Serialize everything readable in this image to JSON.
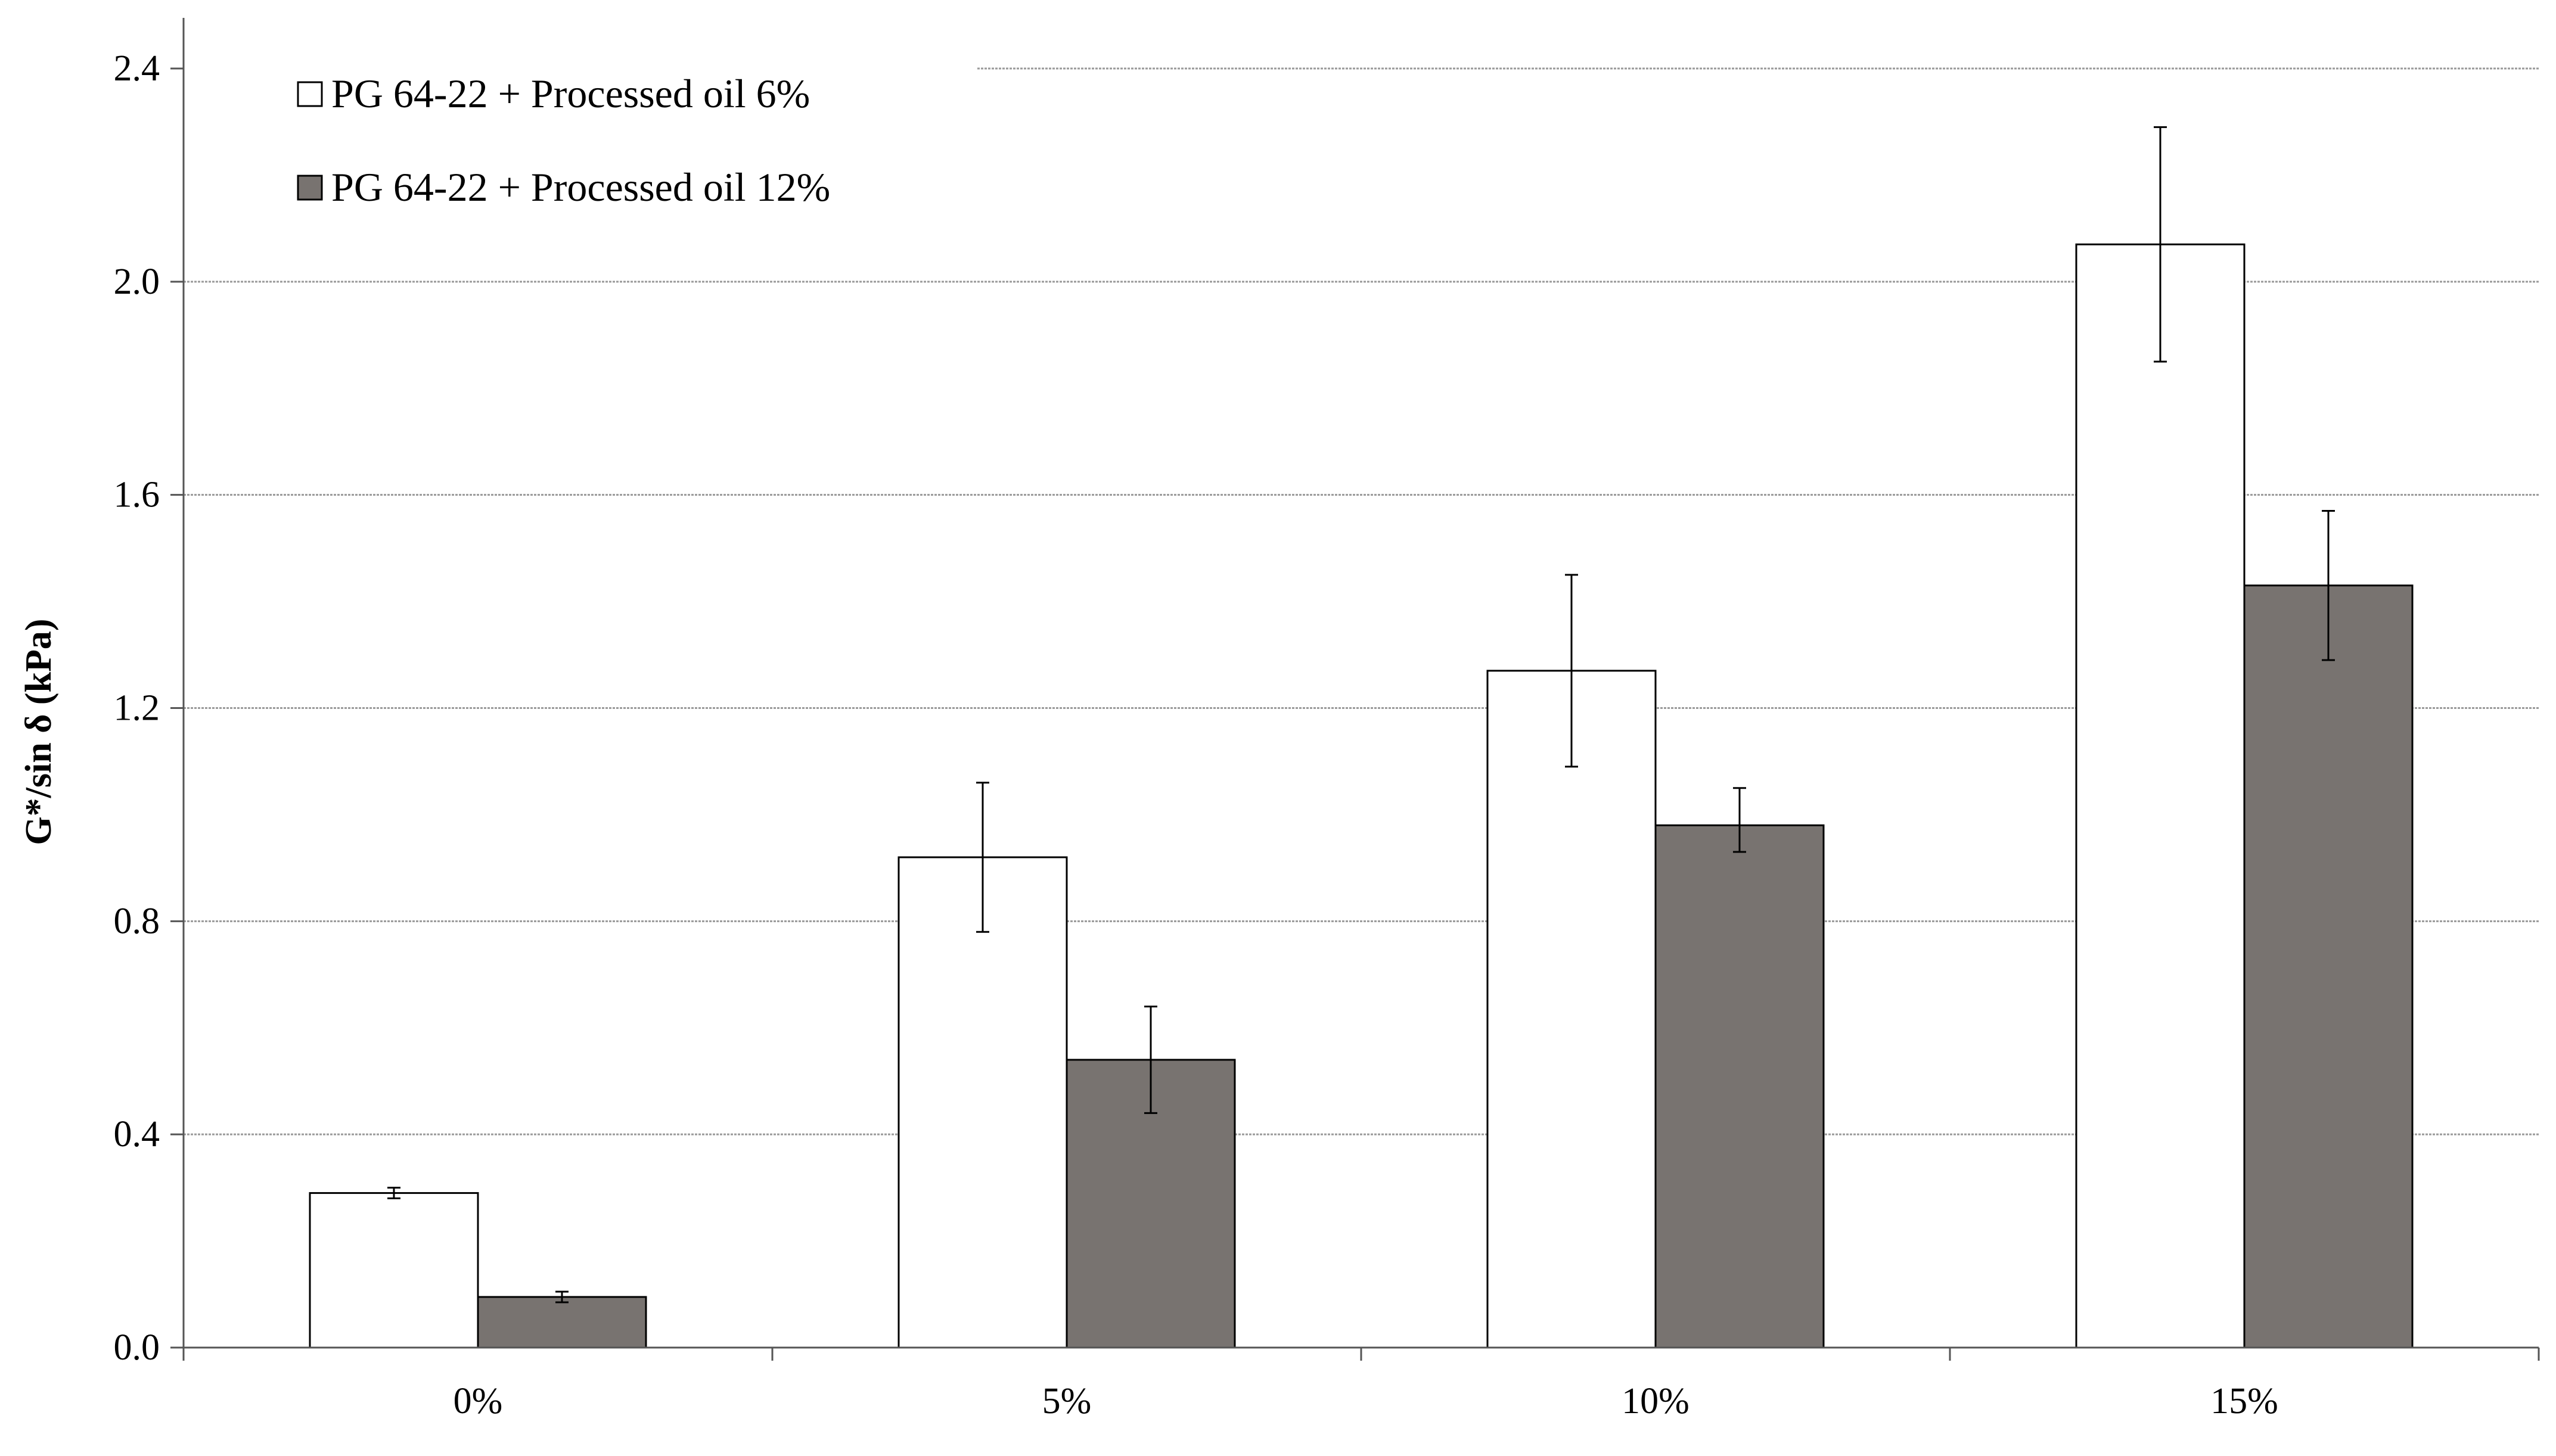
{
  "chart_data": {
    "type": "bar",
    "title": "",
    "xlabel": "",
    "ylabel": "G*/sin δ (kPa)",
    "categories": [
      "0%",
      "5%",
      "10%",
      "15%"
    ],
    "ylim": [
      0.0,
      2.4
    ],
    "yticks": [
      0.0,
      0.4,
      0.8,
      1.2,
      1.6,
      2.0,
      2.4
    ],
    "ytick_labels": [
      "0.0",
      "0.4",
      "0.8",
      "1.2",
      "1.6",
      "2.0",
      "2.4"
    ],
    "grid": true,
    "legend_position": "top-left",
    "series": [
      {
        "name": "PG 64-22 + Processed oil 6%",
        "color": "#ffffff",
        "values": [
          0.29,
          0.92,
          1.27,
          2.07
        ],
        "error_low": [
          0.28,
          0.78,
          1.09,
          1.85
        ],
        "error_high": [
          0.3,
          1.06,
          1.45,
          2.29
        ]
      },
      {
        "name": "PG 64-22 + Processed oil 12%",
        "color": "#787370",
        "values": [
          0.095,
          0.54,
          0.98,
          1.43
        ],
        "error_low": [
          0.085,
          0.44,
          0.93,
          1.29
        ],
        "error_high": [
          0.105,
          0.64,
          1.05,
          1.57
        ]
      }
    ]
  },
  "colors": {
    "axis": "#555555",
    "grid": "#9a9a9a",
    "bar_outline": "#000000",
    "text": "#000000"
  }
}
